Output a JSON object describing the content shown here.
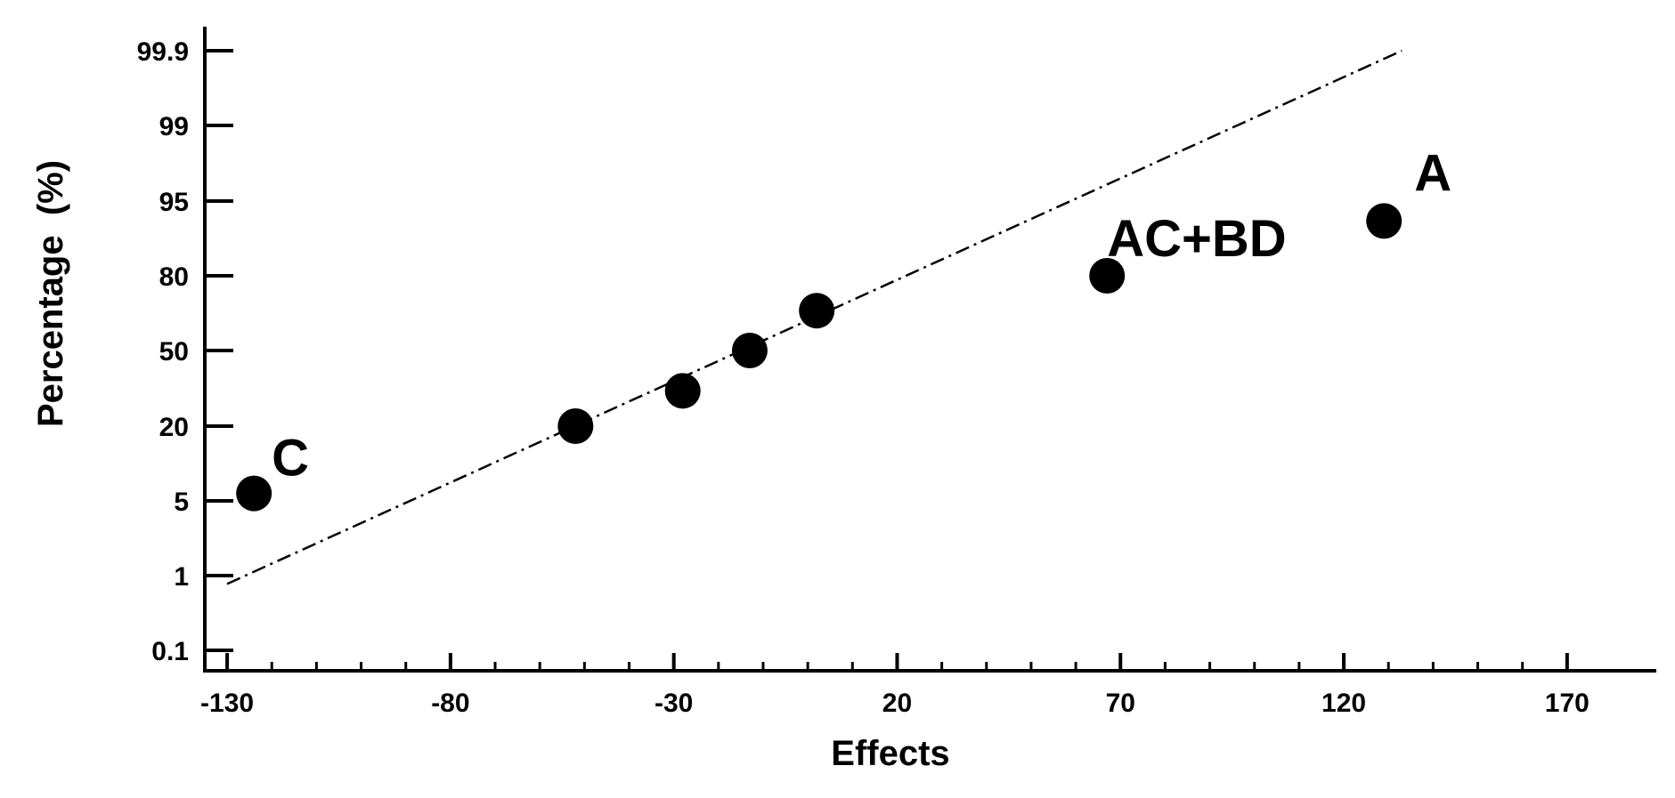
{
  "chart_data": {
    "type": "scatter",
    "title": "",
    "xlabel": "Effects",
    "ylabel": "Percentage  (%)",
    "xlim": [
      -135,
      180
    ],
    "x_ticks": [
      {
        "value": -130,
        "label": "-130"
      },
      {
        "value": -80,
        "label": "-80"
      },
      {
        "value": -30,
        "label": "-30"
      },
      {
        "value": 20,
        "label": "20"
      },
      {
        "value": 70,
        "label": "70"
      },
      {
        "value": 120,
        "label": "120"
      },
      {
        "value": 170,
        "label": "170"
      }
    ],
    "y_ticks": [
      {
        "value": 0.1,
        "label": "0.1"
      },
      {
        "value": 1,
        "label": "1"
      },
      {
        "value": 5,
        "label": "5"
      },
      {
        "value": 20,
        "label": "20"
      },
      {
        "value": 50,
        "label": "50"
      },
      {
        "value": 80,
        "label": "80"
      },
      {
        "value": 95,
        "label": "95"
      },
      {
        "value": 99,
        "label": "99"
      },
      {
        "value": 99.9,
        "label": "99.9"
      }
    ],
    "points": [
      {
        "x": -124,
        "y": 6.5,
        "label": "C"
      },
      {
        "x": -52,
        "y": 20,
        "label": ""
      },
      {
        "x": -28,
        "y": 34,
        "label": ""
      },
      {
        "x": -13,
        "y": 50,
        "label": ""
      },
      {
        "x": 2,
        "y": 66,
        "label": ""
      },
      {
        "x": 67,
        "y": 80,
        "label": "AC+BD"
      },
      {
        "x": 129,
        "y": 91,
        "label": "A"
      }
    ],
    "fit_line": {
      "style": "dash-dot",
      "start": {
        "x": -130,
        "y": 0.9
      },
      "end": {
        "x": 133,
        "y": 99.9
      }
    },
    "grid": false,
    "legend": "none",
    "colors": {
      "points": "#000000",
      "line": "#000000",
      "axes": "#000000"
    }
  }
}
